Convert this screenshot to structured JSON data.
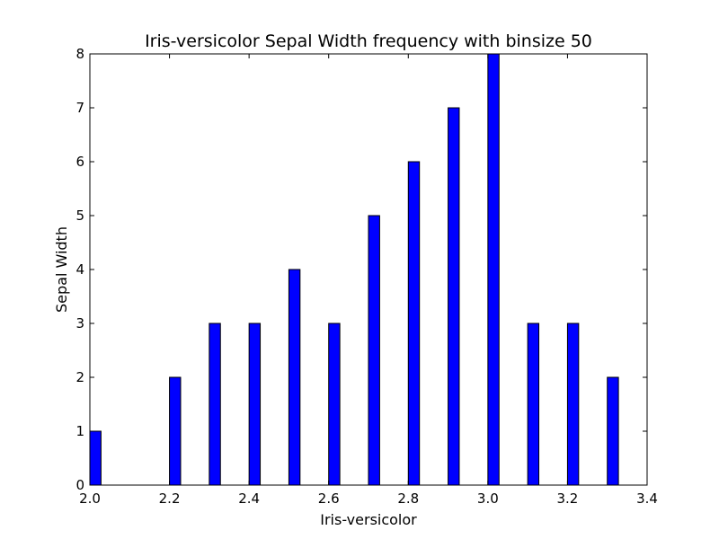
{
  "chart_data": {
    "type": "bar",
    "title": "Iris-versicolor Sepal Width frequency with binsize 50",
    "xlabel": "Iris-versicolor",
    "ylabel": "Sepal Width",
    "xlim": [
      2.0,
      3.4
    ],
    "ylim": [
      0,
      8
    ],
    "x_ticks": [
      "2.0",
      "2.2",
      "2.4",
      "2.6",
      "2.8",
      "3.0",
      "3.2",
      "3.4"
    ],
    "y_ticks": [
      "0",
      "1",
      "2",
      "3",
      "4",
      "5",
      "6",
      "7",
      "8"
    ],
    "grid": false,
    "bin_width": 0.028,
    "bar_color": "#0000ff",
    "edge_color": "#000000",
    "bars": [
      {
        "x": 2.0,
        "value": 1
      },
      {
        "x": 2.2,
        "value": 2
      },
      {
        "x": 2.3,
        "value": 3
      },
      {
        "x": 2.4,
        "value": 3
      },
      {
        "x": 2.5,
        "value": 4
      },
      {
        "x": 2.6,
        "value": 3
      },
      {
        "x": 2.7,
        "value": 5
      },
      {
        "x": 2.8,
        "value": 6
      },
      {
        "x": 2.9,
        "value": 7
      },
      {
        "x": 3.0,
        "value": 8
      },
      {
        "x": 3.1,
        "value": 3
      },
      {
        "x": 3.2,
        "value": 3
      },
      {
        "x": 3.3,
        "value": 2
      }
    ]
  }
}
